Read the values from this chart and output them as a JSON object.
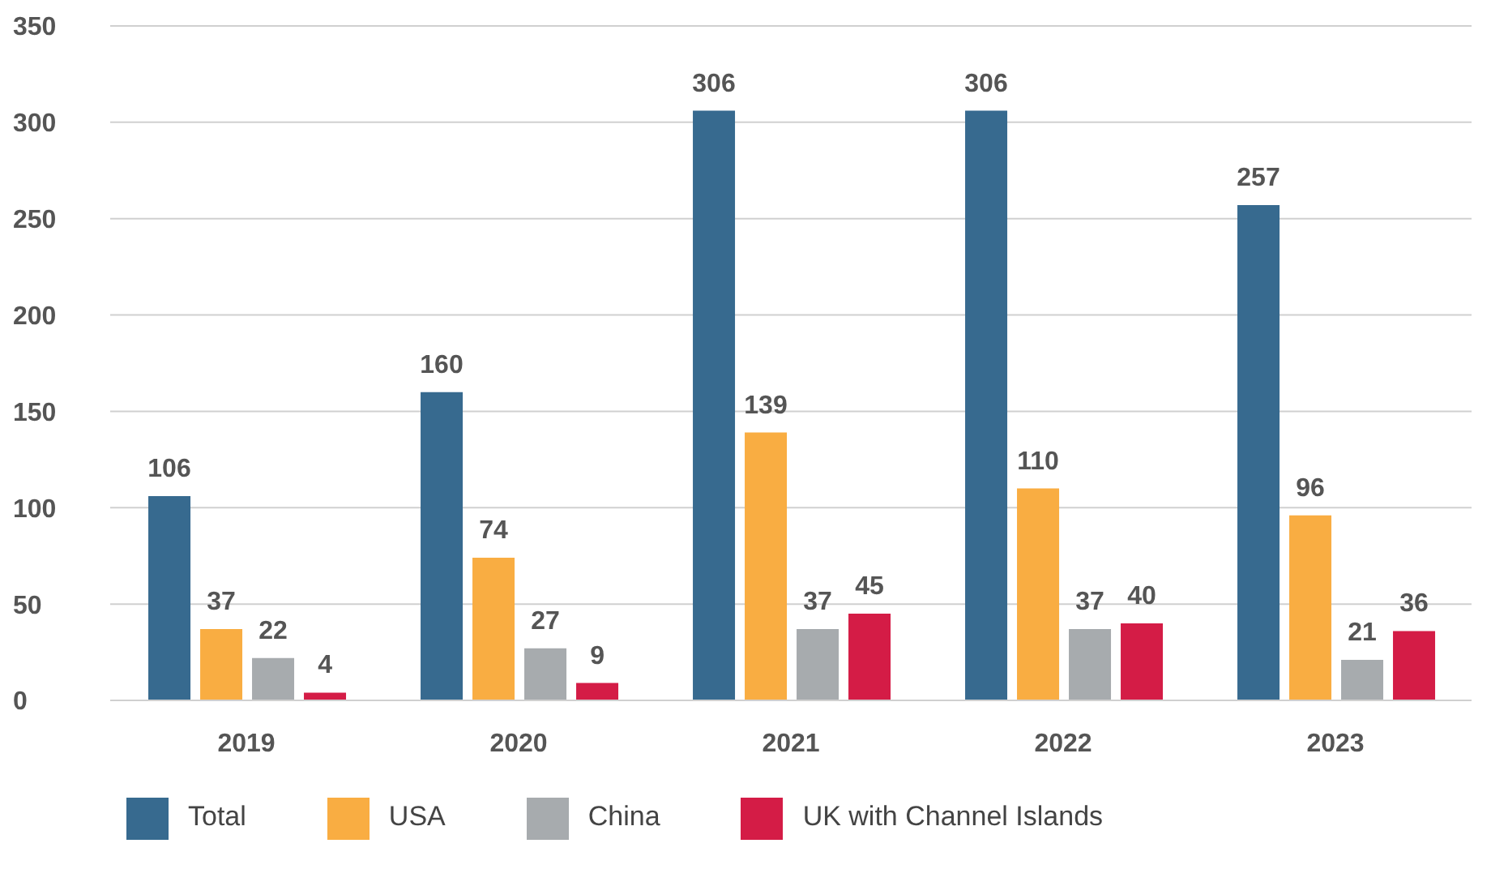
{
  "chart_data": {
    "type": "bar",
    "categories": [
      "2019",
      "2020",
      "2021",
      "2022",
      "2023"
    ],
    "series": [
      {
        "name": "Total",
        "color": "#376a8f",
        "values": [
          106,
          160,
          306,
          306,
          257
        ]
      },
      {
        "name": "USA",
        "color": "#f9ad42",
        "values": [
          37,
          74,
          139,
          110,
          96
        ]
      },
      {
        "name": "China",
        "color": "#a7abae",
        "values": [
          22,
          27,
          37,
          37,
          21
        ]
      },
      {
        "name": "UK with Channel Islands",
        "color": "#d41c46",
        "values": [
          4,
          9,
          45,
          40,
          36
        ]
      }
    ],
    "ylim": [
      0,
      350
    ],
    "yticks": [
      0,
      50,
      100,
      150,
      200,
      250,
      300,
      350
    ],
    "grid": "y",
    "legend": "bottom",
    "data_labels": true
  }
}
